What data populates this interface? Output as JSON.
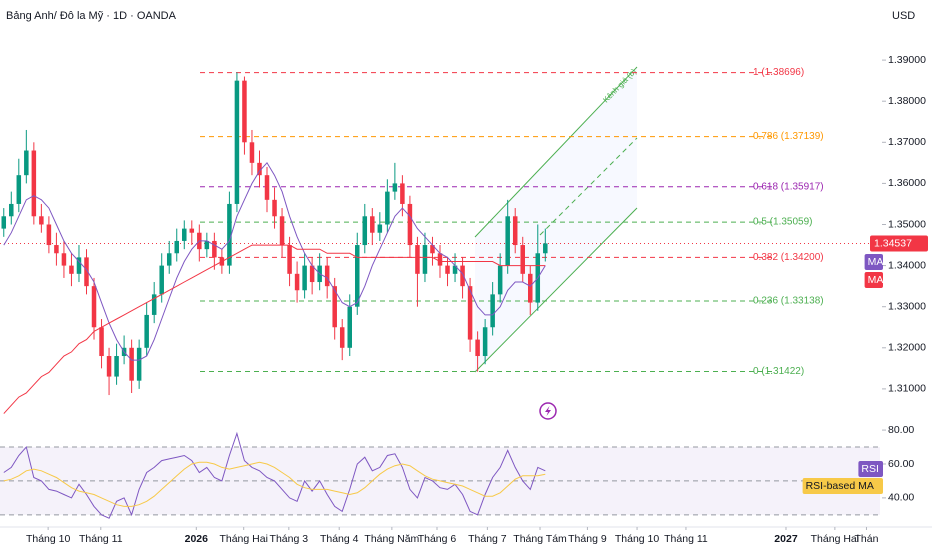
{
  "chart_data": [
    {
      "type": "candlestick",
      "title": "Bảng Anh/ Đô la Mỹ · 1D · OANDA",
      "currency": "USD",
      "up_color": "#089981",
      "down_color": "#f23645",
      "xlim": [
        0,
        117
      ],
      "xticks": [
        {
          "value": 6.4,
          "label": "Tháng 10"
        },
        {
          "value": 13.4,
          "label": "Tháng 11"
        },
        {
          "value": 26.1,
          "label": "2026"
        },
        {
          "value": 32.4,
          "label": "Tháng Hai"
        },
        {
          "value": 38.4,
          "label": "Tháng 3"
        },
        {
          "value": 45.1,
          "label": "Tháng 4"
        },
        {
          "value": 52.1,
          "label": "Tháng Năm"
        },
        {
          "value": 58.1,
          "label": "Tháng 6"
        },
        {
          "value": 64.8,
          "label": "Tháng 7"
        },
        {
          "value": 71.8,
          "label": "Tháng Tám"
        },
        {
          "value": 78.1,
          "label": "Tháng 9"
        },
        {
          "value": 84.7,
          "label": "Tháng 10"
        },
        {
          "value": 91.2,
          "label": "Tháng 11"
        },
        {
          "value": 104.5,
          "label": "2027"
        },
        {
          "value": 111,
          "label": "Tháng Hai"
        },
        {
          "value": 115.2,
          "label": "Thán"
        }
      ],
      "ylim": [
        1.3,
        1.4
      ],
      "yticks": [
        {
          "value": 1.31,
          "label": "1.31000"
        },
        {
          "value": 1.32,
          "label": "1.32000"
        },
        {
          "value": 1.33,
          "label": "1.33000"
        },
        {
          "value": 1.34,
          "label": "1.34000"
        },
        {
          "value": 1.35,
          "label": "1.35000"
        },
        {
          "value": 1.36,
          "label": "1.36000"
        },
        {
          "value": 1.37,
          "label": "1.37000"
        },
        {
          "value": 1.38,
          "label": "1.38000"
        },
        {
          "value": 1.39,
          "label": "1.39000"
        }
      ],
      "ohlc": [
        [
          1.349,
          1.354,
          1.347,
          1.352
        ],
        [
          1.352,
          1.358,
          1.35,
          1.355
        ],
        [
          1.355,
          1.366,
          1.353,
          1.362
        ],
        [
          1.362,
          1.373,
          1.36,
          1.368
        ],
        [
          1.368,
          1.37,
          1.35,
          1.352
        ],
        [
          1.352,
          1.355,
          1.348,
          1.35
        ],
        [
          1.35,
          1.352,
          1.343,
          1.345
        ],
        [
          1.345,
          1.348,
          1.34,
          1.343
        ],
        [
          1.343,
          1.346,
          1.337,
          1.34
        ],
        [
          1.34,
          1.343,
          1.335,
          1.338
        ],
        [
          1.338,
          1.345,
          1.336,
          1.342
        ],
        [
          1.342,
          1.344,
          1.333,
          1.335
        ],
        [
          1.335,
          1.337,
          1.322,
          1.325
        ],
        [
          1.325,
          1.327,
          1.315,
          1.318
        ],
        [
          1.318,
          1.32,
          1.3085,
          1.313
        ],
        [
          1.313,
          1.321,
          1.311,
          1.318
        ],
        [
          1.318,
          1.323,
          1.316,
          1.32
        ],
        [
          1.32,
          1.322,
          1.309,
          1.312
        ],
        [
          1.312,
          1.322,
          1.31,
          1.32
        ],
        [
          1.32,
          1.331,
          1.318,
          1.328
        ],
        [
          1.328,
          1.336,
          1.326,
          1.333
        ],
        [
          1.333,
          1.343,
          1.331,
          1.34
        ],
        [
          1.34,
          1.346,
          1.338,
          1.343
        ],
        [
          1.343,
          1.349,
          1.341,
          1.346
        ],
        [
          1.346,
          1.351,
          1.344,
          1.349
        ],
        [
          1.349,
          1.351,
          1.345,
          1.348
        ],
        [
          1.348,
          1.35,
          1.341,
          1.344
        ],
        [
          1.344,
          1.348,
          1.342,
          1.346
        ],
        [
          1.346,
          1.348,
          1.339,
          1.342
        ],
        [
          1.342,
          1.344,
          1.338,
          1.34
        ],
        [
          1.34,
          1.358,
          1.338,
          1.355
        ],
        [
          1.355,
          1.387,
          1.353,
          1.385
        ],
        [
          1.385,
          1.386,
          1.367,
          1.37
        ],
        [
          1.37,
          1.373,
          1.362,
          1.365
        ],
        [
          1.365,
          1.368,
          1.359,
          1.362
        ],
        [
          1.362,
          1.364,
          1.353,
          1.356
        ],
        [
          1.356,
          1.359,
          1.349,
          1.352
        ],
        [
          1.352,
          1.354,
          1.342,
          1.345
        ],
        [
          1.345,
          1.347,
          1.335,
          1.338
        ],
        [
          1.338,
          1.341,
          1.331,
          1.334
        ],
        [
          1.334,
          1.343,
          1.332,
          1.34
        ],
        [
          1.34,
          1.342,
          1.333,
          1.336
        ],
        [
          1.336,
          1.343,
          1.334,
          1.34
        ],
        [
          1.34,
          1.342,
          1.332,
          1.335
        ],
        [
          1.335,
          1.337,
          1.322,
          1.325
        ],
        [
          1.325,
          1.327,
          1.317,
          1.32
        ],
        [
          1.32,
          1.333,
          1.318,
          1.33
        ],
        [
          1.33,
          1.348,
          1.328,
          1.345
        ],
        [
          1.345,
          1.355,
          1.343,
          1.352
        ],
        [
          1.352,
          1.354,
          1.345,
          1.348
        ],
        [
          1.348,
          1.353,
          1.346,
          1.35
        ],
        [
          1.35,
          1.361,
          1.348,
          1.358
        ],
        [
          1.358,
          1.365,
          1.356,
          1.36
        ],
        [
          1.36,
          1.362,
          1.352,
          1.355
        ],
        [
          1.355,
          1.357,
          1.342,
          1.345
        ],
        [
          1.345,
          1.347,
          1.33,
          1.338
        ],
        [
          1.338,
          1.348,
          1.336,
          1.345
        ],
        [
          1.345,
          1.347,
          1.34,
          1.343
        ],
        [
          1.343,
          1.345,
          1.337,
          1.34
        ],
        [
          1.34,
          1.342,
          1.335,
          1.338
        ],
        [
          1.338,
          1.343,
          1.336,
          1.34
        ],
        [
          1.34,
          1.342,
          1.332,
          1.335
        ],
        [
          1.335,
          1.337,
          1.319,
          1.322
        ],
        [
          1.322,
          1.324,
          1.3142,
          1.318
        ],
        [
          1.318,
          1.327,
          1.316,
          1.325
        ],
        [
          1.325,
          1.336,
          1.323,
          1.333
        ],
        [
          1.333,
          1.343,
          1.331,
          1.34
        ],
        [
          1.34,
          1.356,
          1.338,
          1.352
        ],
        [
          1.352,
          1.354,
          1.343,
          1.345
        ],
        [
          1.345,
          1.347,
          1.336,
          1.338
        ],
        [
          1.338,
          1.34,
          1.328,
          1.331
        ],
        [
          1.331,
          1.35,
          1.329,
          1.343
        ],
        [
          1.343,
          1.349,
          1.341,
          1.3454
        ]
      ],
      "series": [
        {
          "name": "MA",
          "color": "#7e57c2",
          "values": [
            1.345,
            1.348,
            1.352,
            1.356,
            1.357,
            1.356,
            1.354,
            1.35,
            1.346,
            1.343,
            1.341,
            1.339,
            1.336,
            1.331,
            1.326,
            1.322,
            1.319,
            1.317,
            1.317,
            1.318,
            1.322,
            1.327,
            1.332,
            1.337,
            1.341,
            1.344,
            1.346,
            1.346,
            1.345,
            1.344,
            1.346,
            1.352,
            1.356,
            1.36,
            1.363,
            1.365,
            1.362,
            1.358,
            1.352,
            1.347,
            1.343,
            1.34,
            1.338,
            1.337,
            1.334,
            1.331,
            1.33,
            1.331,
            1.335,
            1.34,
            1.344,
            1.348,
            1.352,
            1.354,
            1.352,
            1.349,
            1.347,
            1.345,
            1.343,
            1.342,
            1.34,
            1.338,
            1.334,
            1.33,
            1.328,
            1.328,
            1.33,
            1.334,
            1.336,
            1.336,
            1.335,
            1.337,
            1.34
          ]
        },
        {
          "name": "MA",
          "color": "#f23645",
          "values": [
            1.304,
            1.306,
            1.308,
            1.309,
            1.311,
            1.313,
            1.314,
            1.316,
            1.318,
            1.319,
            1.321,
            1.322,
            1.324,
            1.325,
            1.326,
            1.327,
            1.328,
            1.329,
            1.33,
            1.331,
            1.332,
            1.333,
            1.334,
            1.335,
            1.336,
            1.337,
            1.338,
            1.339,
            1.34,
            1.341,
            1.342,
            1.343,
            1.344,
            1.345,
            1.345,
            1.345,
            1.345,
            1.345,
            1.345,
            1.344,
            1.344,
            1.344,
            1.344,
            1.343,
            1.343,
            1.343,
            1.343,
            1.342,
            1.342,
            1.342,
            1.342,
            1.342,
            1.342,
            1.342,
            1.342,
            1.342,
            1.342,
            1.342,
            1.341,
            1.341,
            1.341,
            1.341,
            1.341,
            1.341,
            1.341,
            1.341,
            1.34,
            1.34,
            1.34,
            1.34,
            1.34,
            1.34,
            1.34
          ]
        }
      ],
      "last_price": 1.34537,
      "last_price_color": "#f23645",
      "fibonacci": [
        {
          "value": 1.38696,
          "label": "1 (1.38696)",
          "color": "#f23645"
        },
        {
          "value": 1.37139,
          "label": "0.786 (1.37139)",
          "color": "#ff9800"
        },
        {
          "value": 1.35917,
          "label": "0.618 (1.35917)",
          "color": "#9c27b0"
        },
        {
          "value": 1.35059,
          "label": "0.5 (1.35059)",
          "color": "#4caf50"
        },
        {
          "value": 1.342,
          "label": "0.382 (1.34200)",
          "color": "#f23645"
        },
        {
          "value": 1.33138,
          "label": "0.236 (1.33138)",
          "color": "#4caf50"
        },
        {
          "value": 1.31422,
          "label": "0 (1.31422)",
          "color": "#4caf50"
        }
      ],
      "channel_label": "Kênh giá (b)",
      "channel_color": "#4caf50"
    },
    {
      "type": "line",
      "xlim": [
        0,
        117
      ],
      "ylim": [
        24,
        83
      ],
      "yticks": [
        {
          "value": 40,
          "label": "40.00"
        },
        {
          "value": 60,
          "label": "60.00"
        },
        {
          "value": 80,
          "label": "80.00"
        }
      ],
      "bands": [
        70,
        50,
        30
      ],
      "series": [
        {
          "name": "RSI",
          "color": "#7e57c2",
          "values": [
            55,
            58,
            65,
            70,
            52,
            50,
            45,
            44,
            42,
            40,
            48,
            42,
            35,
            30,
            28,
            38,
            40,
            30,
            45,
            55,
            58,
            62,
            63,
            64,
            65,
            62,
            55,
            58,
            52,
            50,
            65,
            78,
            62,
            58,
            56,
            52,
            50,
            45,
            40,
            38,
            50,
            44,
            50,
            42,
            35,
            32,
            45,
            60,
            64,
            56,
            58,
            65,
            66,
            58,
            45,
            40,
            52,
            50,
            46,
            45,
            48,
            42,
            32,
            30,
            42,
            52,
            58,
            68,
            58,
            50,
            45,
            58,
            56
          ]
        },
        {
          "name": "RSI-based MA",
          "color": "#f7c948",
          "values": [
            50,
            51,
            53,
            56,
            57,
            56,
            54,
            52,
            49,
            46,
            44,
            43,
            42,
            40,
            38,
            36,
            35,
            35,
            36,
            38,
            41,
            45,
            49,
            53,
            57,
            60,
            61,
            61,
            60,
            58,
            57,
            58,
            59,
            60,
            61,
            60,
            58,
            55,
            52,
            48,
            46,
            45,
            45,
            45,
            44,
            43,
            42,
            43,
            46,
            50,
            54,
            57,
            59,
            60,
            59,
            56,
            53,
            51,
            50,
            49,
            48,
            47,
            45,
            43,
            41,
            41,
            43,
            47,
            51,
            53,
            53,
            53,
            54
          ]
        }
      ]
    }
  ]
}
